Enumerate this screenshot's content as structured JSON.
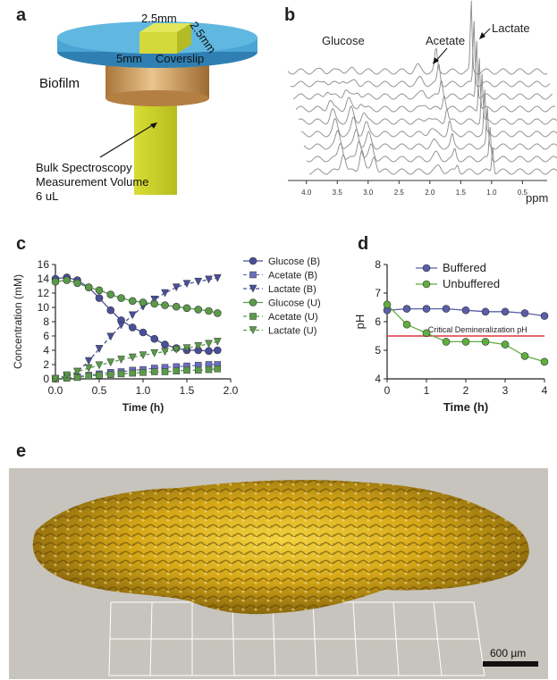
{
  "panels": {
    "a": {
      "letter": "a",
      "labels": {
        "top_width": "2.5mm",
        "top_depth": "2.5mm",
        "diameter": "5mm",
        "coverslip": "Coverslip",
        "biofilm": "Biofilm",
        "bulk": [
          "Bulk Spectroscopy",
          "Measurement Volume",
          "6 uL"
        ]
      }
    },
    "b": {
      "letter": "b",
      "peaks": {
        "glucose": "Glucose",
        "acetate": "Acetate",
        "lactate": "Lactate"
      },
      "xunit": "ppm",
      "xticks": [
        "4.0",
        "3.5",
        "3.0",
        "2.5",
        "2.0",
        "1.5",
        "1.0",
        "0.5"
      ]
    },
    "c": {
      "letter": "c"
    },
    "d": {
      "letter": "d",
      "threshold_label": "Critical Demineralization pH"
    },
    "e": {
      "letter": "e",
      "scalebar": "600 µm"
    }
  },
  "chart_data": [
    {
      "id": "c",
      "type": "line",
      "xlabel": "Time (h)",
      "ylabel": "Concentration (mM)",
      "xlim": [
        0,
        2.0
      ],
      "ylim": [
        0,
        16
      ],
      "xticks": [
        0.0,
        0.5,
        1.0,
        1.5,
        2.0
      ],
      "yticks": [
        0,
        2,
        4,
        6,
        8,
        10,
        12,
        14,
        16
      ],
      "xtick_labels": [
        "0.0",
        "0.5",
        "1.0",
        "1.5",
        "2.0"
      ],
      "ytick_labels": [
        "0",
        "2",
        "4",
        "6",
        "8",
        "10",
        "12",
        "14",
        "16"
      ],
      "series": [
        {
          "name": "Glucose  (B)",
          "color": "#4a4f9a",
          "marker": "circle",
          "dashed": false,
          "x": [
            0,
            0.13,
            0.25,
            0.38,
            0.5,
            0.63,
            0.75,
            0.88,
            1.0,
            1.13,
            1.25,
            1.38,
            1.5,
            1.63,
            1.75,
            1.85
          ],
          "y": [
            14.0,
            14.2,
            13.8,
            12.8,
            11.3,
            9.6,
            8.2,
            7.2,
            6.5,
            5.6,
            4.8,
            4.3,
            4.0,
            4.0,
            3.9,
            4.0
          ]
        },
        {
          "name": "Acetate  (B)",
          "color": "#6a6fc0",
          "marker": "square",
          "dashed": true,
          "x": [
            0,
            0.13,
            0.25,
            0.38,
            0.5,
            0.63,
            0.75,
            0.88,
            1.0,
            1.13,
            1.25,
            1.38,
            1.5,
            1.63,
            1.75,
            1.85
          ],
          "y": [
            0,
            0.1,
            0.3,
            0.5,
            0.7,
            0.9,
            1.0,
            1.2,
            1.3,
            1.5,
            1.6,
            1.7,
            1.8,
            1.9,
            2.0,
            2.0
          ]
        },
        {
          "name": "Lactate  (B)",
          "color": "#4a4f9a",
          "marker": "triangle-down",
          "dashed": true,
          "x": [
            0,
            0.13,
            0.25,
            0.38,
            0.5,
            0.63,
            0.75,
            0.88,
            1.0,
            1.13,
            1.25,
            1.38,
            1.5,
            1.63,
            1.75,
            1.85
          ],
          "y": [
            0,
            0.3,
            1.0,
            2.5,
            4.2,
            5.9,
            7.5,
            8.9,
            10.1,
            11.1,
            12.0,
            12.8,
            13.3,
            13.6,
            13.9,
            14.1
          ]
        },
        {
          "name": "Glucose  (U)",
          "color": "#5a9a4a",
          "marker": "circle",
          "dashed": false,
          "x": [
            0,
            0.13,
            0.25,
            0.38,
            0.5,
            0.63,
            0.75,
            0.88,
            1.0,
            1.13,
            1.25,
            1.38,
            1.5,
            1.63,
            1.75,
            1.85
          ],
          "y": [
            13.6,
            13.8,
            13.4,
            12.8,
            12.4,
            11.8,
            11.3,
            10.9,
            10.7,
            10.5,
            10.3,
            10.1,
            9.9,
            9.7,
            9.5,
            9.2
          ]
        },
        {
          "name": "Acetate  (U)",
          "color": "#5a9a4a",
          "marker": "square",
          "dashed": true,
          "x": [
            0,
            0.13,
            0.25,
            0.38,
            0.5,
            0.63,
            0.75,
            0.88,
            1.0,
            1.13,
            1.25,
            1.38,
            1.5,
            1.63,
            1.75,
            1.85
          ],
          "y": [
            0,
            0.1,
            0.2,
            0.4,
            0.5,
            0.6,
            0.7,
            0.8,
            0.9,
            1.0,
            1.0,
            1.1,
            1.2,
            1.2,
            1.3,
            1.4
          ]
        },
        {
          "name": "Lactate  (U)",
          "color": "#5a9a4a",
          "marker": "triangle-down",
          "dashed": true,
          "x": [
            0,
            0.13,
            0.25,
            0.38,
            0.5,
            0.63,
            0.75,
            0.88,
            1.0,
            1.13,
            1.25,
            1.38,
            1.5,
            1.63,
            1.75,
            1.85
          ],
          "y": [
            0,
            0.5,
            1.0,
            1.5,
            1.9,
            2.3,
            2.7,
            3.0,
            3.3,
            3.6,
            3.8,
            4.1,
            4.3,
            4.6,
            4.9,
            5.2
          ]
        }
      ]
    },
    {
      "id": "d",
      "type": "line",
      "xlabel": "Time (h)",
      "ylabel": "pH",
      "xlim": [
        0,
        4
      ],
      "ylim": [
        4,
        8
      ],
      "xticks": [
        0,
        1,
        2,
        3,
        4
      ],
      "yticks": [
        4,
        5,
        6,
        7,
        8
      ],
      "xtick_labels": [
        "0",
        "1",
        "2",
        "3",
        "4"
      ],
      "ytick_labels": [
        "4",
        "5",
        "6",
        "7",
        "8"
      ],
      "threshold": {
        "y": 5.5,
        "color": "#e0353f"
      },
      "series": [
        {
          "name": "Buffered",
          "color": "#5a5ea8",
          "x": [
            0,
            0.5,
            1,
            1.5,
            2,
            2.5,
            3,
            3.5,
            4
          ],
          "y": [
            6.4,
            6.45,
            6.45,
            6.45,
            6.4,
            6.35,
            6.35,
            6.3,
            6.2
          ]
        },
        {
          "name": "Unbuffered",
          "color": "#5fae3f",
          "x": [
            0,
            0.5,
            1,
            1.5,
            2,
            2.5,
            3,
            3.5,
            4
          ],
          "y": [
            6.6,
            5.9,
            5.6,
            5.3,
            5.3,
            5.3,
            5.2,
            4.8,
            4.6
          ]
        }
      ]
    }
  ]
}
